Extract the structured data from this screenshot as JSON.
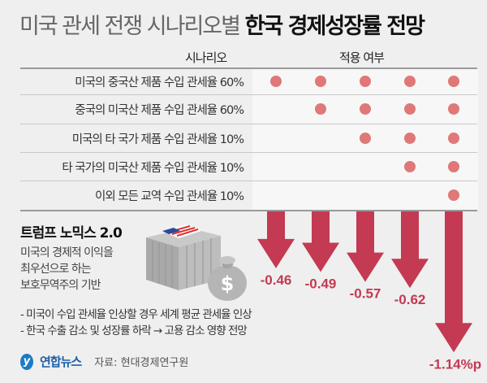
{
  "title": {
    "light": "미국 관세 전쟁 시나리오별",
    "bold": "한국 경제성장률 전망"
  },
  "table": {
    "header_scenario": "시나리오",
    "header_applied": "적용 여부",
    "rows": [
      {
        "label": "미국의 중국산 제품 수입 관세율 60%",
        "applied": [
          true,
          true,
          true,
          true,
          true
        ]
      },
      {
        "label": "중국의 미국산 제품 수입 관세율 60%",
        "applied": [
          false,
          true,
          true,
          true,
          true
        ]
      },
      {
        "label": "미국의 타 국가 제품 수입 관세율 10%",
        "applied": [
          false,
          false,
          true,
          true,
          true
        ]
      },
      {
        "label": "타 국가의 미국산 제품 수입 관세율 10%",
        "applied": [
          false,
          false,
          false,
          true,
          true
        ]
      },
      {
        "label": "이외 모든 교역 수입 관세율 10%",
        "applied": [
          false,
          false,
          false,
          false,
          true
        ]
      }
    ]
  },
  "info": {
    "title": "트럼프 노믹스 2.0",
    "desc": [
      "미국의 경제적 이익을",
      "최우선으로 하는",
      "보호무역주의 기반"
    ],
    "bullets": [
      "- 미국이 수입 관세율 인상할 경우 세계 평균 관세율 인상",
      "- 한국 수출 감소 및 성장률 하락 → 고용 감소 영향 전망"
    ]
  },
  "footer": {
    "logo": "연합뉴스",
    "source": "자료: 현대경제연구원"
  },
  "colors": {
    "arrow": "#c33a52",
    "dot": "#e07878"
  },
  "chart_data": {
    "type": "bar",
    "categories": [
      "1",
      "2",
      "3",
      "4",
      "5"
    ],
    "values": [
      -0.46,
      -0.49,
      -0.57,
      -0.62,
      -1.14
    ],
    "labels": [
      "-0.46",
      "-0.49",
      "-0.57",
      "-0.62",
      "-1.14%p"
    ],
    "unit": "%p"
  }
}
